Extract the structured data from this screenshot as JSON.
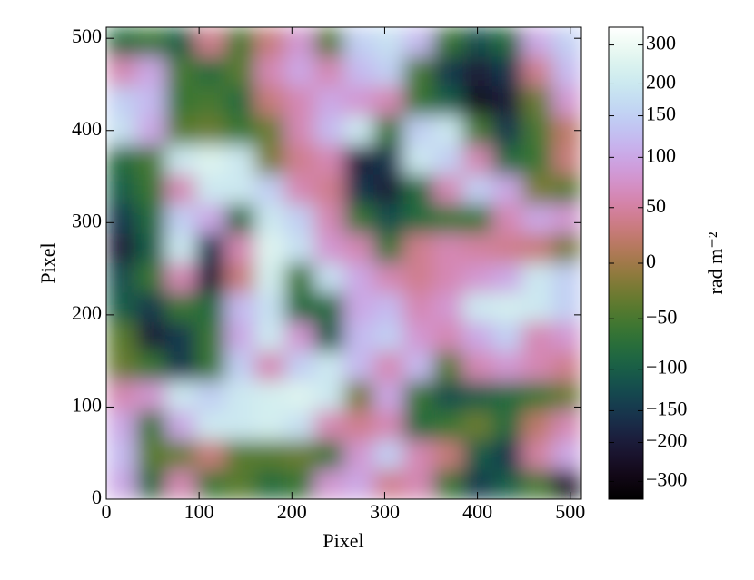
{
  "chart_data": {
    "type": "heatmap",
    "xlabel": "Pixel",
    "ylabel": "Pixel",
    "colorbar_label": "rad m⁻²",
    "xlim": [
      0,
      512
    ],
    "ylim": [
      0,
      512
    ],
    "xticks": [
      0,
      100,
      200,
      300,
      400,
      500
    ],
    "yticks": [
      0,
      100,
      200,
      300,
      400,
      500
    ],
    "colormap": "cubehelix",
    "clim": [
      -400,
      400
    ],
    "cticks": [
      {
        "value": -300,
        "label": "−300"
      },
      {
        "value": -200,
        "label": "−200"
      },
      {
        "value": -150,
        "label": "−150"
      },
      {
        "value": -100,
        "label": "−100"
      },
      {
        "value": -50,
        "label": "−50"
      },
      0,
      50,
      100,
      150,
      200,
      300
    ],
    "z": [
      [
        -80,
        -60,
        -100,
        40,
        -50,
        30,
        80,
        -40,
        150,
        180,
        120,
        -60,
        -120,
        -80,
        100,
        150
      ],
      [
        60,
        100,
        -50,
        -80,
        -40,
        60,
        100,
        60,
        120,
        150,
        -50,
        -150,
        -200,
        -150,
        40,
        120
      ],
      [
        150,
        120,
        -60,
        -50,
        -80,
        30,
        60,
        100,
        80,
        60,
        -60,
        -100,
        -250,
        -200,
        -30,
        80
      ],
      [
        180,
        100,
        -40,
        -30,
        -60,
        -30,
        60,
        120,
        200,
        -60,
        150,
        200,
        -50,
        -150,
        -50,
        20
      ],
      [
        -80,
        -50,
        200,
        250,
        200,
        -20,
        40,
        60,
        -200,
        -150,
        200,
        150,
        60,
        -80,
        -60,
        30
      ],
      [
        -100,
        -60,
        60,
        200,
        200,
        150,
        60,
        40,
        -150,
        -200,
        -80,
        60,
        150,
        100,
        -20,
        -40
      ],
      [
        -150,
        -80,
        150,
        100,
        -80,
        200,
        150,
        60,
        -60,
        -120,
        -80,
        -60,
        -60,
        60,
        100,
        80
      ],
      [
        -200,
        -100,
        200,
        -150,
        60,
        250,
        180,
        80,
        60,
        -60,
        40,
        60,
        50,
        40,
        30,
        -20
      ],
      [
        -120,
        -60,
        60,
        -200,
        30,
        220,
        -60,
        180,
        100,
        60,
        40,
        60,
        80,
        100,
        200,
        150
      ],
      [
        -100,
        -150,
        -60,
        -80,
        120,
        180,
        -80,
        -80,
        100,
        120,
        60,
        80,
        200,
        220,
        200,
        150
      ],
      [
        -40,
        -200,
        -150,
        -60,
        100,
        200,
        80,
        -100,
        120,
        150,
        80,
        60,
        100,
        150,
        60,
        80
      ],
      [
        -30,
        -60,
        -150,
        -60,
        150,
        60,
        150,
        200,
        120,
        60,
        120,
        -40,
        60,
        80,
        60,
        40
      ],
      [
        60,
        80,
        200,
        150,
        200,
        220,
        250,
        200,
        -20,
        100,
        -60,
        -120,
        -100,
        -80,
        -60,
        -30
      ],
      [
        100,
        -60,
        100,
        200,
        200,
        220,
        180,
        60,
        40,
        60,
        -80,
        -60,
        -30,
        -80,
        20,
        60
      ],
      [
        120,
        -40,
        -30,
        30,
        -40,
        -40,
        -30,
        -60,
        80,
        150,
        60,
        30,
        -100,
        -150,
        50,
        100
      ],
      [
        100,
        -80,
        60,
        -60,
        -40,
        -80,
        -60,
        80,
        100,
        40,
        60,
        -60,
        -150,
        -100,
        -50,
        -250
      ]
    ]
  }
}
